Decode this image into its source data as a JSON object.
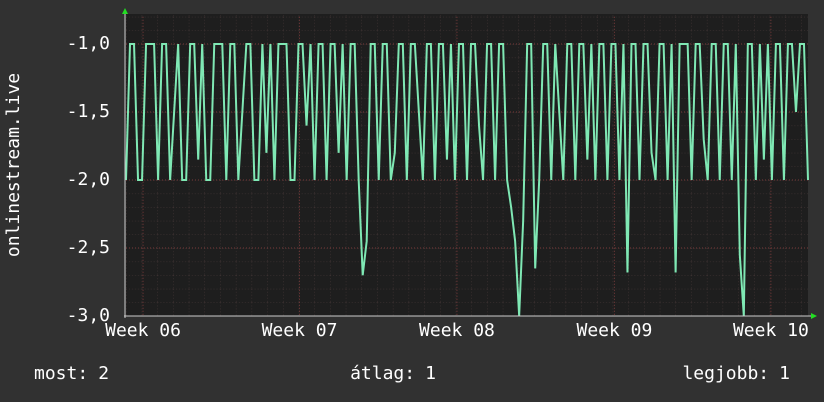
{
  "chart_data": {
    "type": "line",
    "y_label": "onlinestream.live",
    "color": "#7fe8b4",
    "grid": true,
    "ylim": [
      -3.0,
      -0.8
    ],
    "yticks": [
      {
        "value": -1.0,
        "label": "-1,0"
      },
      {
        "value": -1.5,
        "label": "-1,5"
      },
      {
        "value": -2.0,
        "label": "-2,0"
      },
      {
        "value": -2.5,
        "label": "-2,5"
      },
      {
        "value": -3.0,
        "label": "-3,0"
      }
    ],
    "xlim": [
      0,
      170
    ],
    "xticks": [
      {
        "value": 4.25,
        "label": "Week 06"
      },
      {
        "value": 43.25,
        "label": "Week 07"
      },
      {
        "value": 82.5,
        "label": "Week 08"
      },
      {
        "value": 121.75,
        "label": "Week 09"
      },
      {
        "value": 160.75,
        "label": "Week 10"
      }
    ],
    "values": [
      -2,
      -1,
      -1,
      -2,
      -2,
      -1,
      -1,
      -1,
      -2,
      -1,
      -1,
      -2,
      -1.5,
      -1,
      -2,
      -2,
      -1,
      -1,
      -1.85,
      -1,
      -2,
      -2,
      -1,
      -1,
      -1,
      -2,
      -1,
      -1,
      -2,
      -1.5,
      -1,
      -1,
      -2,
      -2,
      -1,
      -1.8,
      -1,
      -2,
      -1,
      -1,
      -1,
      -2,
      -2,
      -1,
      -1,
      -1.6,
      -1,
      -2,
      -1,
      -1,
      -2,
      -1,
      -1,
      -1.8,
      -1,
      -2,
      -1,
      -1,
      -2,
      -2.7,
      -2.45,
      -1,
      -1,
      -2,
      -1,
      -1,
      -2,
      -1.8,
      -1,
      -1,
      -2,
      -1,
      -1,
      -1.5,
      -2,
      -1,
      -1,
      -2,
      -1,
      -1,
      -1.85,
      -1,
      -2,
      -1,
      -1,
      -2,
      -1,
      -1,
      -1.6,
      -2,
      -1,
      -1,
      -2,
      -1,
      -1,
      -2,
      -2.2,
      -2.45,
      -3.0,
      -2.3,
      -1,
      -1,
      -2.65,
      -2,
      -1,
      -1,
      -2,
      -1,
      -1.5,
      -2,
      -1,
      -1,
      -2,
      -1,
      -1,
      -1.85,
      -1,
      -2,
      -1,
      -1,
      -2,
      -1,
      -1,
      -2,
      -1,
      -2.68,
      -1,
      -1,
      -2,
      -1,
      -1,
      -1.8,
      -2,
      -1,
      -1,
      -2,
      -1,
      -2.68,
      -1,
      -1,
      -1,
      -2,
      -1,
      -1,
      -1.7,
      -2,
      -1,
      -1,
      -2,
      -1,
      -1,
      -2,
      -1,
      -2.55,
      -3.0,
      -1,
      -1,
      -2,
      -1,
      -1.85,
      -1,
      -2,
      -1,
      -1,
      -2,
      -1,
      -1,
      -1.5,
      -1,
      -1,
      -2
    ],
    "stats": [
      {
        "label": "most:",
        "value": 2
      },
      {
        "label": "átlag:",
        "value": 1
      },
      {
        "label": "legjobb:",
        "value": 1
      }
    ]
  }
}
